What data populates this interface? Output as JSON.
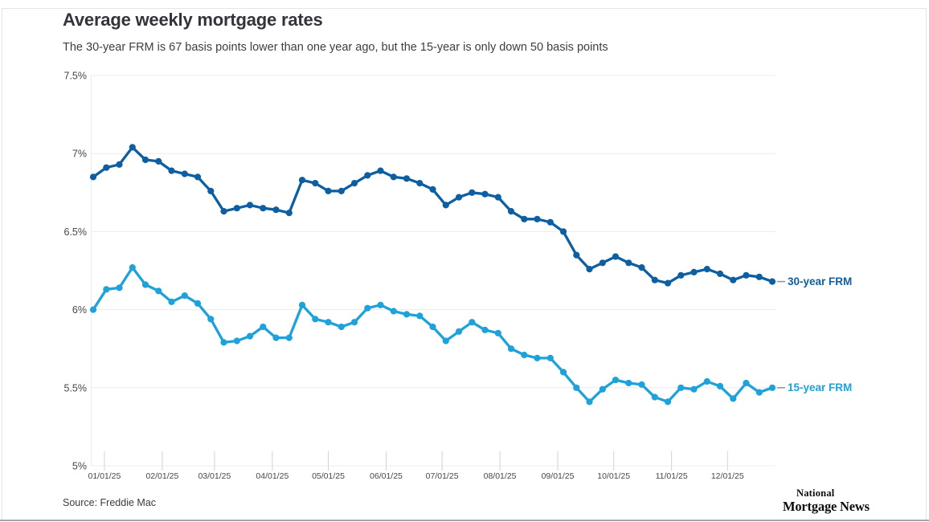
{
  "header": {
    "title": "Average weekly mortgage rates",
    "subtitle": "The 30-year FRM is 67 basis points lower than one year ago, but the 15-year is only down 50 basis points"
  },
  "source": {
    "label": "Source: Freddie Mac"
  },
  "branding": {
    "line1": "National",
    "line2": "Mortgage News"
  },
  "colors": {
    "series_30yr": "#0e5fa2",
    "series_15yr": "#1ea2da",
    "gridline": "#ececef",
    "tick": "#d2d2d8",
    "legend_dash": "#96969c",
    "axis_text": "#47474d"
  },
  "chart_data": {
    "type": "line",
    "title": "Average weekly mortgage rates",
    "x": [
      "12/26/24",
      "01/02/25",
      "01/09/25",
      "01/16/25",
      "01/23/25",
      "01/30/25",
      "02/06/25",
      "02/13/25",
      "02/20/25",
      "02/27/25",
      "03/06/25",
      "03/13/25",
      "03/20/25",
      "03/27/25",
      "04/03/25",
      "04/10/25",
      "04/17/25",
      "04/24/25",
      "05/01/25",
      "05/08/25",
      "05/15/25",
      "05/22/25",
      "05/29/25",
      "06/05/25",
      "06/12/25",
      "06/18/25",
      "06/26/25",
      "07/03/25",
      "07/10/25",
      "07/17/25",
      "07/24/25",
      "07/31/25",
      "08/07/25",
      "08/14/25",
      "08/21/25",
      "08/28/25",
      "09/04/25",
      "09/11/25",
      "09/18/25",
      "09/25/25",
      "10/02/25",
      "10/09/25",
      "10/16/25",
      "10/23/25",
      "10/30/25",
      "11/06/25",
      "11/13/25",
      "11/20/25",
      "11/26/25",
      "12/04/25",
      "12/11/25",
      "12/18/25",
      "12/24/25"
    ],
    "series": [
      {
        "name": "30-year FRM",
        "color": "#0e5fa2",
        "values": [
          6.85,
          6.91,
          6.93,
          7.04,
          6.96,
          6.95,
          6.89,
          6.87,
          6.85,
          6.76,
          6.63,
          6.65,
          6.67,
          6.65,
          6.64,
          6.62,
          6.83,
          6.81,
          6.76,
          6.76,
          6.81,
          6.86,
          6.89,
          6.85,
          6.84,
          6.81,
          6.77,
          6.67,
          6.72,
          6.75,
          6.74,
          6.72,
          6.63,
          6.58,
          6.58,
          6.56,
          6.5,
          6.35,
          6.26,
          6.3,
          6.34,
          6.3,
          6.27,
          6.19,
          6.17,
          6.22,
          6.24,
          6.26,
          6.23,
          6.19,
          6.22,
          6.21,
          6.18
        ]
      },
      {
        "name": "15-year FRM",
        "color": "#1ea2da",
        "values": [
          6.0,
          6.13,
          6.14,
          6.27,
          6.16,
          6.12,
          6.05,
          6.09,
          6.04,
          5.94,
          5.79,
          5.8,
          5.83,
          5.89,
          5.82,
          5.82,
          6.03,
          5.94,
          5.92,
          5.89,
          5.92,
          6.01,
          6.03,
          5.99,
          5.97,
          5.96,
          5.89,
          5.8,
          5.86,
          5.92,
          5.87,
          5.85,
          5.75,
          5.71,
          5.69,
          5.69,
          5.6,
          5.5,
          5.41,
          5.49,
          5.55,
          5.53,
          5.52,
          5.44,
          5.41,
          5.5,
          5.49,
          5.54,
          5.51,
          5.43,
          5.53,
          5.47,
          5.5
        ]
      }
    ],
    "yticks": [
      {
        "value": 7.5,
        "label": "7.5%"
      },
      {
        "value": 7.0,
        "label": "7%"
      },
      {
        "value": 6.5,
        "label": "6.5%"
      },
      {
        "value": 6.0,
        "label": "6%"
      },
      {
        "value": 5.5,
        "label": "5.5%"
      },
      {
        "value": 5.0,
        "label": "5%"
      }
    ],
    "xticks": [
      "01/01/25",
      "02/01/25",
      "03/01/25",
      "04/01/25",
      "05/01/25",
      "06/01/25",
      "07/01/25",
      "08/01/25",
      "09/01/25",
      "10/01/25",
      "11/01/25",
      "12/01/25"
    ],
    "ylim": [
      5.0,
      7.5
    ],
    "xlabel": "",
    "ylabel": "",
    "grid": "horizontal",
    "legend_position": "right-of-line-end"
  }
}
